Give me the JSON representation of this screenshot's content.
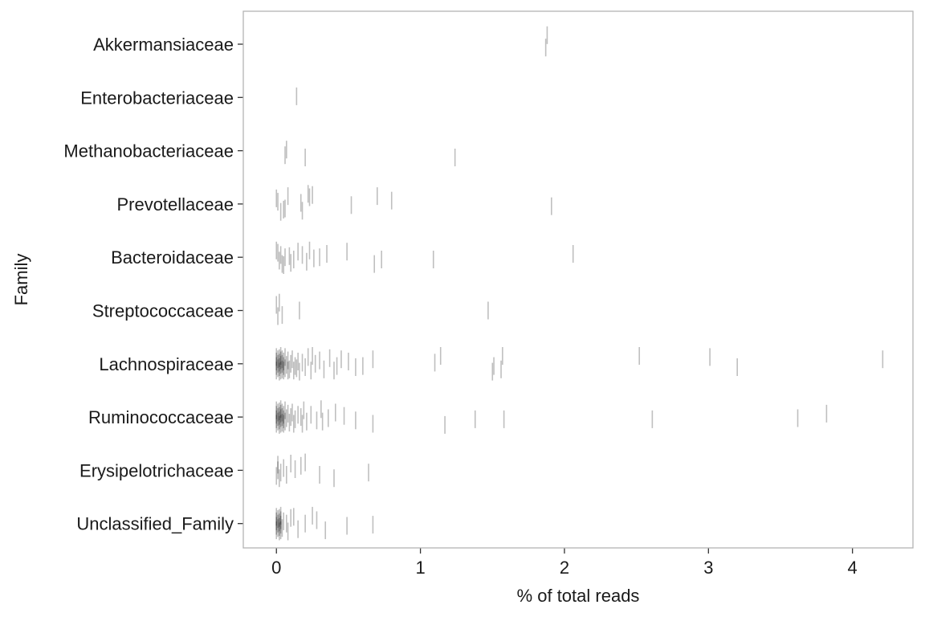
{
  "chart_data": {
    "type": "scatter",
    "mark": "vertical-dash",
    "xlabel": "% of total reads",
    "ylabel": "Family",
    "xlim": [
      -0.23,
      4.42
    ],
    "x_ticks": [
      0,
      1,
      2,
      3,
      4
    ],
    "grid": false,
    "legend": "none",
    "colors": {
      "mark": "#000000",
      "panel_border": "#b3b3b3",
      "tick": "#333333"
    },
    "categories": [
      "Akkermansiaceae",
      "Enterobacteriaceae",
      "Methanobacteriaceae",
      "Prevotellaceae",
      "Bacteroidaceae",
      "Streptococcaceae",
      "Lachnospiraceae",
      "Ruminococcaceae",
      "Erysipelotrichaceae",
      "Unclassified_Family"
    ],
    "series": [
      {
        "category": "Akkermansiaceae",
        "points": [
          [
            1.87,
            0.15
          ],
          [
            1.88,
            -0.4
          ]
        ]
      },
      {
        "category": "Enterobacteriaceae",
        "points": [
          [
            0.14,
            -0.05
          ]
        ]
      },
      {
        "category": "Methanobacteriaceae",
        "points": [
          [
            0.07,
            -0.05
          ],
          [
            0.2,
            0.3
          ],
          [
            1.24,
            0.3
          ],
          [
            0.06,
            0.2
          ]
        ]
      },
      {
        "category": "Prevotellaceae",
        "points": [
          [
            0.03,
            0.35
          ],
          [
            0.05,
            0.25
          ],
          [
            0.18,
            0.3
          ],
          [
            0.06,
            0.2
          ],
          [
            0.01,
            -0.1
          ],
          [
            0.52,
            0.05
          ],
          [
            1.91,
            0.1
          ],
          [
            0.17,
            -0.05
          ],
          [
            0.0,
            -0.25
          ],
          [
            0.8,
            -0.15
          ],
          [
            0.7,
            -0.35
          ],
          [
            0.25,
            -0.4
          ],
          [
            0.22,
            -0.45
          ],
          [
            0.23,
            -0.3
          ],
          [
            0.08,
            -0.35
          ]
        ]
      },
      {
        "category": "Bacteroidaceae",
        "points": [
          [
            0.04,
            0.3
          ],
          [
            0.02,
            0.15
          ],
          [
            0.06,
            0.0
          ],
          [
            0.09,
            -0.05
          ],
          [
            0.12,
            0.1
          ],
          [
            0.18,
            -0.1
          ],
          [
            0.21,
            0.2
          ],
          [
            0.26,
            0.05
          ],
          [
            0.3,
            0.0
          ],
          [
            0.35,
            -0.15
          ],
          [
            0.49,
            -0.25
          ],
          [
            0.68,
            0.3
          ],
          [
            0.73,
            0.1
          ],
          [
            1.09,
            0.1
          ],
          [
            2.06,
            -0.15
          ],
          [
            0.01,
            -0.2
          ],
          [
            0.0,
            -0.3
          ],
          [
            0.15,
            -0.25
          ],
          [
            0.05,
            0.35
          ],
          [
            0.03,
            -0.1
          ],
          [
            0.23,
            -0.3
          ],
          [
            0.1,
            0.25
          ]
        ]
      },
      {
        "category": "Streptococcaceae",
        "points": [
          [
            0.01,
            0.25
          ],
          [
            0.04,
            0.2
          ],
          [
            0.16,
            0.0
          ],
          [
            1.47,
            0.0
          ],
          [
            0.02,
            -0.35
          ],
          [
            0.0,
            -0.25
          ]
        ]
      },
      {
        "category": "Lachnospiraceae",
        "points": [
          [
            0.0,
            0.3
          ],
          [
            0.0,
            0.1
          ],
          [
            0.0,
            -0.1
          ],
          [
            0.0,
            -0.3
          ],
          [
            0.01,
            0.2
          ],
          [
            0.01,
            0.0
          ],
          [
            0.01,
            -0.2
          ],
          [
            0.02,
            0.35
          ],
          [
            0.02,
            0.15
          ],
          [
            0.02,
            -0.05
          ],
          [
            0.02,
            -0.25
          ],
          [
            0.03,
            0.3
          ],
          [
            0.03,
            0.05
          ],
          [
            0.03,
            -0.15
          ],
          [
            0.03,
            -0.35
          ],
          [
            0.04,
            0.25
          ],
          [
            0.04,
            0.0
          ],
          [
            0.04,
            -0.2
          ],
          [
            0.05,
            0.3
          ],
          [
            0.05,
            0.1
          ],
          [
            0.05,
            -0.1
          ],
          [
            0.06,
            0.2
          ],
          [
            0.06,
            -0.3
          ],
          [
            0.07,
            0.05
          ],
          [
            0.08,
            -0.15
          ],
          [
            0.09,
            0.25
          ],
          [
            0.1,
            0.0
          ],
          [
            0.11,
            -0.2
          ],
          [
            0.12,
            0.3
          ],
          [
            0.13,
            0.1
          ],
          [
            0.15,
            -0.1
          ],
          [
            0.16,
            0.35
          ],
          [
            0.18,
            -0.05
          ],
          [
            0.2,
            0.15
          ],
          [
            0.22,
            -0.3
          ],
          [
            0.24,
            0.3
          ],
          [
            0.27,
            0.0
          ],
          [
            0.3,
            -0.15
          ],
          [
            0.33,
            0.25
          ],
          [
            0.37,
            -0.25
          ],
          [
            0.42,
            0.1
          ],
          [
            0.45,
            -0.2
          ],
          [
            0.5,
            -0.1
          ],
          [
            0.55,
            0.15
          ],
          [
            0.6,
            0.1
          ],
          [
            0.67,
            -0.2
          ],
          [
            1.1,
            -0.05
          ],
          [
            1.14,
            -0.35
          ],
          [
            1.5,
            0.35
          ],
          [
            1.51,
            0.1
          ],
          [
            1.56,
            0.25
          ],
          [
            1.57,
            -0.35
          ],
          [
            2.52,
            -0.35
          ],
          [
            3.01,
            -0.3
          ],
          [
            3.2,
            0.15
          ],
          [
            4.21,
            -0.2
          ],
          [
            0.08,
            0.3
          ],
          [
            0.14,
            0.2
          ],
          [
            0.25,
            -0.35
          ],
          [
            0.4,
            0.3
          ]
        ]
      },
      {
        "category": "Ruminococcaceae",
        "points": [
          [
            0.0,
            0.3
          ],
          [
            0.0,
            0.1
          ],
          [
            0.0,
            -0.1
          ],
          [
            0.0,
            -0.3
          ],
          [
            0.01,
            0.2
          ],
          [
            0.01,
            0.0
          ],
          [
            0.01,
            -0.2
          ],
          [
            0.02,
            0.35
          ],
          [
            0.02,
            0.15
          ],
          [
            0.02,
            -0.05
          ],
          [
            0.02,
            -0.25
          ],
          [
            0.03,
            0.3
          ],
          [
            0.03,
            0.05
          ],
          [
            0.03,
            -0.15
          ],
          [
            0.03,
            -0.35
          ],
          [
            0.04,
            0.25
          ],
          [
            0.04,
            0.0
          ],
          [
            0.04,
            -0.2
          ],
          [
            0.05,
            0.3
          ],
          [
            0.05,
            0.1
          ],
          [
            0.05,
            -0.1
          ],
          [
            0.06,
            0.2
          ],
          [
            0.06,
            -0.3
          ],
          [
            0.07,
            0.05
          ],
          [
            0.08,
            -0.15
          ],
          [
            0.09,
            0.25
          ],
          [
            0.1,
            0.0
          ],
          [
            0.11,
            -0.2
          ],
          [
            0.12,
            0.3
          ],
          [
            0.13,
            0.1
          ],
          [
            0.15,
            -0.1
          ],
          [
            0.17,
            0.0
          ],
          [
            0.19,
            -0.3
          ],
          [
            0.21,
            0.2
          ],
          [
            0.24,
            -0.1
          ],
          [
            0.28,
            0.15
          ],
          [
            0.31,
            -0.35
          ],
          [
            0.36,
            0.05
          ],
          [
            0.41,
            -0.2
          ],
          [
            0.47,
            -0.05
          ],
          [
            0.55,
            0.15
          ],
          [
            0.67,
            0.3
          ],
          [
            1.17,
            0.35
          ],
          [
            1.38,
            0.1
          ],
          [
            1.58,
            0.1
          ],
          [
            2.61,
            0.1
          ],
          [
            3.62,
            0.05
          ],
          [
            3.82,
            -0.15
          ],
          [
            0.32,
            0.2
          ],
          [
            0.18,
            0.3
          ]
        ]
      },
      {
        "category": "Erysipelotrichaceae",
        "points": [
          [
            0.0,
            0.25
          ],
          [
            0.01,
            0.0
          ],
          [
            0.01,
            -0.25
          ],
          [
            0.03,
            0.1
          ],
          [
            0.05,
            -0.1
          ],
          [
            0.07,
            0.2
          ],
          [
            0.1,
            -0.3
          ],
          [
            0.13,
            -0.05
          ],
          [
            0.17,
            -0.2
          ],
          [
            0.2,
            -0.35
          ],
          [
            0.4,
            0.35
          ],
          [
            0.3,
            0.2
          ],
          [
            0.64,
            0.1
          ],
          [
            0.02,
            0.35
          ]
        ]
      },
      {
        "category": "Unclassified_Family",
        "points": [
          [
            0.0,
            0.3
          ],
          [
            0.0,
            0.1
          ],
          [
            0.0,
            -0.1
          ],
          [
            0.0,
            -0.3
          ],
          [
            0.01,
            0.2
          ],
          [
            0.01,
            0.0
          ],
          [
            0.01,
            -0.2
          ],
          [
            0.02,
            0.35
          ],
          [
            0.02,
            0.15
          ],
          [
            0.02,
            -0.05
          ],
          [
            0.02,
            -0.25
          ],
          [
            0.03,
            0.3
          ],
          [
            0.03,
            0.05
          ],
          [
            0.03,
            -0.15
          ],
          [
            0.03,
            -0.35
          ],
          [
            0.04,
            0.2
          ],
          [
            0.05,
            -0.1
          ],
          [
            0.07,
            0.0
          ],
          [
            0.1,
            -0.25
          ],
          [
            0.15,
            0.25
          ],
          [
            0.2,
            0.0
          ],
          [
            0.25,
            -0.35
          ],
          [
            0.28,
            -0.15
          ],
          [
            0.34,
            0.3
          ],
          [
            0.49,
            0.1
          ],
          [
            0.67,
            0.05
          ],
          [
            0.08,
            0.35
          ],
          [
            0.12,
            -0.3
          ]
        ]
      }
    ]
  }
}
